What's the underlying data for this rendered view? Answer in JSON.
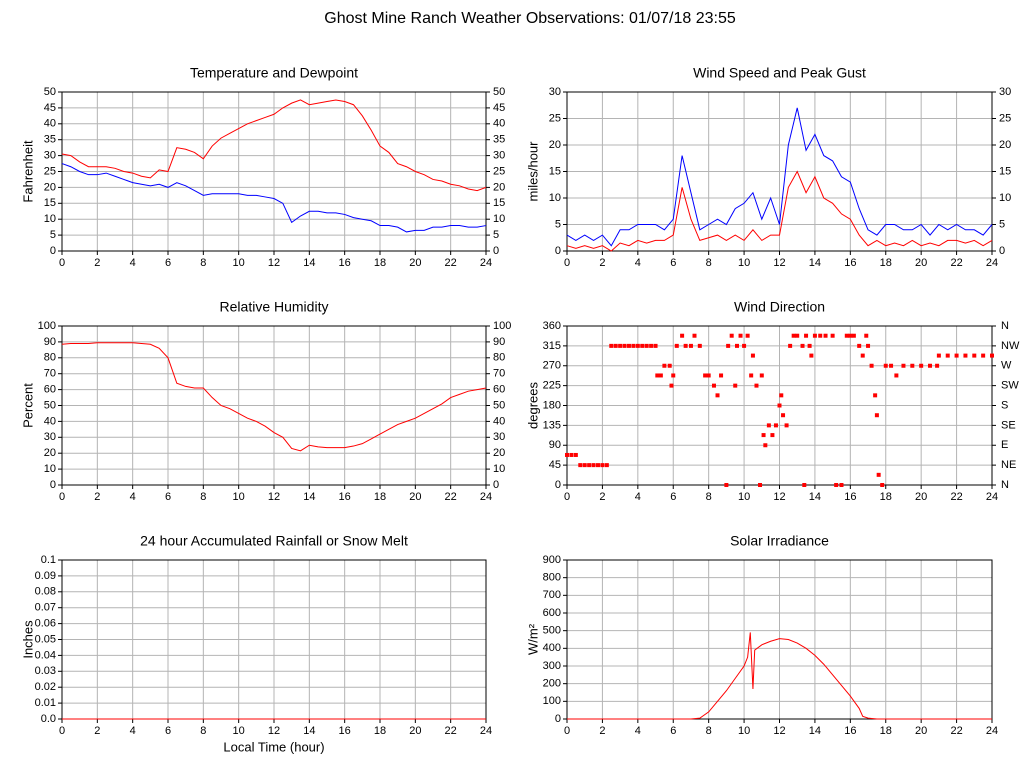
{
  "title": "Ghost Mine Ranch Weather Observations: 01/07/18 23:55",
  "chart_data": [
    {
      "type": "line",
      "title": "Temperature and Dewpoint",
      "ylabel": "Fahrenheit",
      "right_axis_labels": true,
      "grid": true,
      "xlim": [
        0,
        24
      ],
      "xticks": [
        0,
        2,
        4,
        6,
        8,
        10,
        12,
        14,
        16,
        18,
        20,
        22,
        24
      ],
      "ylim": [
        0,
        50
      ],
      "yticks": [
        0,
        5,
        10,
        15,
        20,
        25,
        30,
        35,
        40,
        45,
        50
      ],
      "x": [
        0,
        0.5,
        1,
        1.5,
        2,
        2.5,
        3,
        3.5,
        4,
        4.5,
        5,
        5.5,
        6,
        6.5,
        7,
        7.5,
        8,
        8.5,
        9,
        9.5,
        10,
        10.5,
        11,
        11.5,
        12,
        12.5,
        13,
        13.5,
        14,
        14.5,
        15,
        15.5,
        16,
        16.5,
        17,
        17.5,
        18,
        18.5,
        19,
        19.5,
        20,
        20.5,
        21,
        21.5,
        22,
        22.5,
        23,
        23.5,
        24
      ],
      "series": [
        {
          "color": "#ff0000",
          "values": [
            30.5,
            30,
            28,
            26.5,
            26.5,
            26.5,
            26,
            25,
            24.5,
            23.5,
            23,
            25.5,
            25,
            32.5,
            32,
            31,
            29,
            33,
            35.5,
            37,
            38.5,
            40,
            41,
            42,
            43,
            45,
            46.5,
            47.5,
            46,
            46.5,
            47,
            47.5,
            47,
            46,
            42.5,
            38,
            33,
            31,
            27.5,
            26.5,
            25,
            24,
            22.5,
            22,
            21,
            20.5,
            19.5,
            19,
            20
          ]
        },
        {
          "color": "#0000ff",
          "values": [
            27.5,
            26.5,
            25,
            24,
            24,
            24.5,
            23.5,
            22.5,
            21.5,
            21,
            20.5,
            21,
            20,
            21.5,
            20.5,
            19,
            17.5,
            18,
            18,
            18,
            18,
            17.5,
            17.5,
            17,
            16.5,
            15,
            9,
            11,
            12.5,
            12.5,
            12,
            12,
            11.5,
            10.5,
            10,
            9.5,
            8,
            8,
            7.5,
            6,
            6.5,
            6.5,
            7.5,
            7.5,
            8,
            8,
            7.5,
            7.5,
            8
          ]
        }
      ]
    },
    {
      "type": "line",
      "title": "Wind Speed and Peak Gust",
      "ylabel": "miles/hour",
      "right_axis_labels": true,
      "grid": true,
      "xlim": [
        0,
        24
      ],
      "xticks": [
        0,
        2,
        4,
        6,
        8,
        10,
        12,
        14,
        16,
        18,
        20,
        22,
        24
      ],
      "ylim": [
        0,
        30
      ],
      "yticks": [
        0,
        5,
        10,
        15,
        20,
        25,
        30
      ],
      "x": [
        0,
        0.5,
        1,
        1.5,
        2,
        2.5,
        3,
        3.5,
        4,
        4.5,
        5,
        5.5,
        6,
        6.5,
        7,
        7.5,
        8,
        8.5,
        9,
        9.5,
        10,
        10.5,
        11,
        11.5,
        12,
        12.5,
        13,
        13.5,
        14,
        14.5,
        15,
        15.5,
        16,
        16.5,
        17,
        17.5,
        18,
        18.5,
        19,
        19.5,
        20,
        20.5,
        21,
        21.5,
        22,
        22.5,
        23,
        23.5,
        24
      ],
      "series": [
        {
          "color": "#0000ff",
          "values": [
            3,
            2,
            3,
            2,
            3,
            1,
            4,
            4,
            5,
            5,
            5,
            4,
            6,
            18,
            11,
            4,
            5,
            6,
            5,
            8,
            9,
            11,
            6,
            10,
            5,
            20,
            27,
            19,
            22,
            18,
            17,
            14,
            13,
            8,
            4,
            3,
            5,
            5,
            4,
            4,
            5,
            3,
            5,
            4,
            5,
            4,
            4,
            3,
            5
          ]
        },
        {
          "color": "#ff0000",
          "values": [
            1,
            0.5,
            1,
            0.5,
            1,
            0,
            1.5,
            1,
            2,
            1.5,
            2,
            2,
            3,
            12,
            6,
            2,
            2.5,
            3,
            2,
            3,
            2,
            4,
            2,
            3,
            3,
            12,
            15,
            11,
            14,
            10,
            9,
            7,
            6,
            3,
            1,
            2,
            1,
            1.5,
            1,
            2,
            1,
            1.5,
            1,
            2,
            2,
            1.5,
            2,
            1,
            2
          ]
        }
      ]
    },
    {
      "type": "line",
      "title": "Relative Humidity",
      "ylabel": "Percent",
      "right_axis_labels": true,
      "grid": true,
      "xlim": [
        0,
        24
      ],
      "xticks": [
        0,
        2,
        4,
        6,
        8,
        10,
        12,
        14,
        16,
        18,
        20,
        22,
        24
      ],
      "ylim": [
        0,
        100
      ],
      "yticks": [
        0,
        10,
        20,
        30,
        40,
        50,
        60,
        70,
        80,
        90,
        100
      ],
      "x": [
        0,
        0.5,
        1,
        1.5,
        2,
        2.5,
        3,
        3.5,
        4,
        4.5,
        5,
        5.5,
        6,
        6.5,
        7,
        7.5,
        8,
        8.5,
        9,
        9.5,
        10,
        10.5,
        11,
        11.5,
        12,
        12.5,
        13,
        13.5,
        14,
        14.5,
        15,
        15.5,
        16,
        16.5,
        17,
        17.5,
        18,
        18.5,
        19,
        19.5,
        20,
        20.5,
        21,
        21.5,
        22,
        22.5,
        23,
        23.5,
        24
      ],
      "series": [
        {
          "color": "#ff0000",
          "values": [
            88.5,
            89,
            89,
            89,
            89.5,
            89.5,
            89.5,
            89.5,
            89.5,
            89,
            88.5,
            86,
            80,
            64,
            62,
            61,
            61,
            55,
            50,
            48,
            45,
            42,
            40,
            37,
            33,
            30,
            23,
            21.5,
            25,
            24,
            23.5,
            23.5,
            23.5,
            24.5,
            26,
            29,
            32,
            35,
            38,
            40,
            42,
            45,
            48,
            51,
            55,
            57,
            59,
            60,
            61
          ]
        }
      ]
    },
    {
      "type": "scatter",
      "title": "Wind Direction",
      "ylabel": "degrees",
      "color": "#ff0000",
      "grid": true,
      "xlim": [
        0,
        24
      ],
      "xticks": [
        0,
        2,
        4,
        6,
        8,
        10,
        12,
        14,
        16,
        18,
        20,
        22,
        24
      ],
      "ylim": [
        0,
        360
      ],
      "yticks": [
        0,
        45,
        90,
        135,
        180,
        225,
        270,
        315,
        360
      ],
      "y2lim": [
        0,
        360
      ],
      "y2ticks": [
        {
          "value": 0,
          "label": "N"
        },
        {
          "value": 45,
          "label": "NE"
        },
        {
          "value": 90,
          "label": "E"
        },
        {
          "value": 135,
          "label": "SE"
        },
        {
          "value": 180,
          "label": "S"
        },
        {
          "value": 225,
          "label": "SW"
        },
        {
          "value": 270,
          "label": "W"
        },
        {
          "value": 315,
          "label": "NW"
        },
        {
          "value": 360,
          "label": "N"
        }
      ],
      "x": [
        0,
        0.25,
        0.5,
        0.75,
        1,
        1.25,
        1.5,
        1.75,
        2,
        2.25,
        2.5,
        2.75,
        3,
        3.25,
        3.5,
        3.75,
        4,
        4.25,
        4.5,
        4.75,
        5,
        5.1,
        5.3,
        5.5,
        5.8,
        5.9,
        6,
        6.2,
        6.5,
        6.7,
        7,
        7.2,
        7.5,
        7.8,
        8,
        8.3,
        8.5,
        8.7,
        9,
        9.1,
        9.3,
        9.5,
        9.6,
        9.8,
        10,
        10.2,
        10.4,
        10.5,
        10.7,
        10.9,
        11,
        11.1,
        11.2,
        11.4,
        11.6,
        11.8,
        12,
        12.1,
        12.2,
        12.4,
        12.6,
        12.8,
        13,
        13.3,
        13.4,
        13.5,
        13.7,
        13.8,
        14,
        14.3,
        14.6,
        15,
        15.2,
        15.5,
        15.8,
        16,
        16.2,
        16.5,
        16.7,
        16.9,
        17,
        17.2,
        17.4,
        17.5,
        17.6,
        17.8,
        18,
        18.3,
        18.6,
        19,
        19.5,
        20,
        20.5,
        20.9,
        21,
        21.5,
        22,
        22.5,
        23,
        23.5,
        24
      ],
      "values": [
        68,
        68,
        68,
        45,
        45,
        45,
        45,
        45,
        45,
        45,
        315,
        315,
        315,
        315,
        315,
        315,
        315,
        315,
        315,
        315,
        315,
        248,
        248,
        270,
        270,
        225,
        248,
        315,
        338,
        315,
        315,
        338,
        315,
        248,
        248,
        225,
        203,
        248,
        0,
        315,
        338,
        225,
        315,
        338,
        315,
        338,
        248,
        293,
        225,
        0,
        248,
        113,
        90,
        135,
        113,
        135,
        180,
        203,
        158,
        135,
        315,
        338,
        338,
        315,
        0,
        338,
        315,
        293,
        338,
        338,
        338,
        338,
        0,
        0,
        338,
        338,
        338,
        315,
        293,
        338,
        315,
        270,
        203,
        158,
        23,
        0,
        270,
        270,
        248,
        270,
        270,
        270,
        270,
        270,
        293,
        293,
        293,
        293,
        293,
        293,
        293
      ]
    },
    {
      "type": "line",
      "title": "24 hour Accumulated Rainfall or Snow Melt",
      "ylabel": "Inches",
      "xlabel": "Local Time (hour)",
      "grid": true,
      "xlim": [
        0,
        24
      ],
      "xticks": [
        0,
        2,
        4,
        6,
        8,
        10,
        12,
        14,
        16,
        18,
        20,
        22,
        24
      ],
      "ylim": [
        0,
        0.1
      ],
      "yticks": [
        {
          "value": 0,
          "label": "0.0"
        },
        0.01,
        0.02,
        0.03,
        0.04,
        0.05,
        0.06,
        0.07,
        0.08,
        0.09,
        0.1
      ],
      "x": [
        0,
        24
      ],
      "series": [
        {
          "color": "#ff0000",
          "values": [
            0,
            0
          ]
        }
      ]
    },
    {
      "type": "line",
      "title": "Solar Irradiance",
      "ylabel": "W/m²",
      "grid": true,
      "xlim": [
        0,
        24
      ],
      "xticks": [
        0,
        2,
        4,
        6,
        8,
        10,
        12,
        14,
        16,
        18,
        20,
        22,
        24
      ],
      "ylim": [
        0,
        900
      ],
      "yticks": [
        0,
        100,
        200,
        300,
        400,
        500,
        600,
        700,
        800,
        900
      ],
      "x": [
        0,
        7,
        7.5,
        8,
        8.5,
        9,
        9.5,
        10,
        10.2,
        10.35,
        10.5,
        10.6,
        11,
        11.5,
        12,
        12.5,
        13,
        13.5,
        14,
        14.5,
        15,
        15.5,
        16,
        16.5,
        16.7,
        17,
        17.5,
        24
      ],
      "series": [
        {
          "color": "#ff0000",
          "values": [
            0,
            0,
            5,
            40,
            100,
            160,
            230,
            300,
            350,
            490,
            170,
            390,
            420,
            440,
            455,
            450,
            430,
            400,
            360,
            310,
            250,
            190,
            130,
            60,
            15,
            5,
            0,
            0
          ]
        }
      ]
    }
  ]
}
